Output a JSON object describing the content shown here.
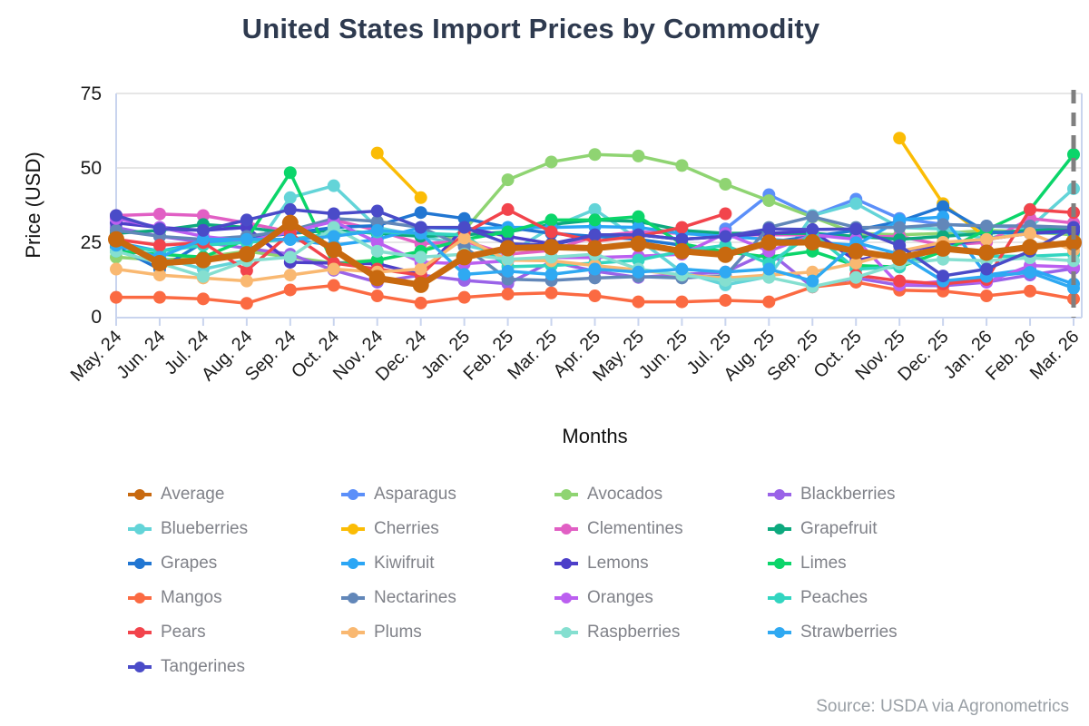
{
  "header": {
    "title": "United States Import Prices by Commodity"
  },
  "footer": {
    "source": "Source: USDA via Agronometrics"
  },
  "chart_data": {
    "type": "line",
    "title": "United States Import Prices by Commodity",
    "xlabel": "Months",
    "ylabel": "Price (USD)",
    "ylim": [
      0,
      75
    ],
    "yticks": [
      0,
      25,
      50,
      75
    ],
    "grid": true,
    "legend_position": "bottom",
    "annotations": [
      {
        "type": "vline",
        "x": "Mar. 26",
        "style": "dashed",
        "color": "#7F7F7F"
      }
    ],
    "categories": [
      "May. 24",
      "Jun. 24",
      "Jul. 24",
      "Aug. 24",
      "Sep. 24",
      "Oct. 24",
      "Nov. 24",
      "Dec. 24",
      "Jan. 25",
      "Feb. 25",
      "Mar. 25",
      "Apr. 25",
      "May. 25",
      "Jun. 25",
      "Jul. 25",
      "Aug. 25",
      "Sep. 25",
      "Oct. 25",
      "Nov. 25",
      "Dec. 25",
      "Jan. 26",
      "Feb. 26",
      "Mar. 26"
    ],
    "series": [
      {
        "name": "Average",
        "color": "#C8690F",
        "emphasized": true,
        "values": [
          26,
          18,
          19,
          21,
          31.5,
          22.5,
          13,
          10.7,
          20,
          23,
          23.4,
          23,
          24.5,
          22,
          20.8,
          24.9,
          25,
          22,
          19.8,
          22.9,
          21.5,
          23.4,
          24.9
        ]
      },
      {
        "name": "Asparagus",
        "color": "#5B8FF9",
        "values": [
          null,
          null,
          null,
          null,
          null,
          null,
          null,
          null,
          null,
          null,
          null,
          null,
          null,
          null,
          29.5,
          41,
          34,
          39.5,
          33,
          31,
          30.5,
          30,
          29.5
        ]
      },
      {
        "name": "Avocados",
        "color": "#8FD472",
        "values": [
          20,
          19,
          20,
          22,
          20,
          18,
          19,
          21.8,
          29,
          46,
          52,
          54.5,
          54,
          50.8,
          44.5,
          39,
          33.5,
          28,
          27.5,
          28,
          29,
          28.5,
          27.5
        ]
      },
      {
        "name": "Blackberries",
        "color": "#9A63E8",
        "values": [
          30,
          27,
          25,
          23,
          21,
          15.6,
          11.6,
          14,
          12.2,
          11.1,
          18.5,
          15.3,
          13.2,
          14.2,
          15,
          21.8,
          10,
          13,
          10.6,
          10.4,
          11.6,
          14,
          16.2
        ]
      },
      {
        "name": "Blueberries",
        "color": "#63D4D8",
        "values": [
          24,
          20,
          16,
          19,
          40,
          44,
          30,
          27,
          24,
          21,
          30,
          36,
          26,
          15,
          10.7,
          13.5,
          34,
          38,
          30,
          29.5,
          26,
          30,
          43
        ]
      },
      {
        "name": "Cherries",
        "color": "#FBBC05",
        "values": [
          null,
          null,
          null,
          null,
          null,
          null,
          55,
          40,
          null,
          null,
          null,
          null,
          null,
          null,
          null,
          null,
          null,
          null,
          60,
          38,
          26.5,
          null,
          null
        ]
      },
      {
        "name": "Clementines",
        "color": "#E15FC4",
        "values": [
          34,
          34.5,
          34,
          31.5,
          28.5,
          32.5,
          29,
          24.5,
          25.4,
          21,
          22.3,
          27,
          28.5,
          28,
          27.5,
          27.5,
          27.5,
          26.8,
          27,
          24,
          25,
          33,
          31.5
        ]
      },
      {
        "name": "Grapefruit",
        "color": "#0DA97E",
        "values": [
          28,
          29,
          31,
          30,
          28,
          29,
          28,
          27,
          27.5,
          28.5,
          31,
          32.5,
          32,
          29,
          28,
          28,
          28,
          27,
          26,
          27,
          28,
          29,
          29.5
        ]
      },
      {
        "name": "Grapes",
        "color": "#2176D2",
        "values": [
          23.5,
          16,
          25,
          26,
          28,
          30,
          30.6,
          35,
          33,
          30,
          28,
          27,
          26,
          24,
          20.3,
          25,
          27,
          29,
          32,
          37,
          28.5,
          28,
          28.5
        ]
      },
      {
        "name": "Kiwifruit",
        "color": "#2BA6F5",
        "values": [
          25,
          22,
          25,
          26,
          26,
          24,
          26,
          30,
          29.5,
          30,
          30,
          30.3,
          30,
          28,
          27,
          26,
          25,
          24,
          32.5,
          33.5,
          14,
          16,
          11
        ]
      },
      {
        "name": "Lemons",
        "color": "#4D3FC9",
        "values": [
          31.5,
          30,
          29,
          30,
          18.3,
          18,
          17.8,
          14.2,
          30,
          27,
          24.5,
          27.5,
          27.5,
          26,
          27,
          28,
          28.8,
          18.8,
          22,
          24,
          26,
          28,
          29
        ]
      },
      {
        "name": "Limes",
        "color": "#0BD56A",
        "values": [
          22,
          21,
          20,
          26,
          48.4,
          17.5,
          19,
          22,
          26,
          28.5,
          32.5,
          32.5,
          33.6,
          24.5,
          21.8,
          20,
          22,
          17.2,
          16.7,
          22,
          29.2,
          36,
          54.5
        ]
      },
      {
        "name": "Mangos",
        "color": "#FB6A42",
        "values": [
          6.5,
          6.5,
          6,
          4.5,
          9,
          10.5,
          7,
          4.6,
          6.5,
          7.6,
          8,
          7,
          5,
          5,
          5.5,
          5,
          10,
          11.6,
          8.9,
          8.6,
          7,
          8.6,
          6
        ]
      },
      {
        "name": "Nectarines",
        "color": "#6287B9",
        "values": [
          29,
          27,
          26,
          27,
          29,
          33,
          32,
          30,
          23.5,
          12.6,
          12.2,
          13,
          13.5,
          13,
          13.8,
          30,
          33.6,
          30,
          30,
          31,
          30.5,
          30.5,
          30
        ]
      },
      {
        "name": "Oranges",
        "color": "#BB5FF0",
        "values": [
          33,
          30,
          27,
          25.4,
          28.5,
          32,
          25,
          18.3,
          17.8,
          18.8,
          19.9,
          19.9,
          20.3,
          21,
          28,
          22,
          27.5,
          26,
          10.6,
          11.9,
          11.6,
          17.2,
          16.7
        ]
      },
      {
        "name": "Peaches",
        "color": "#32D5C0",
        "values": [
          24,
          22,
          24,
          25,
          26,
          28,
          28.5,
          28,
          27.5,
          16.8,
          17.2,
          18,
          19,
          22,
          24,
          17.8,
          28,
          16,
          16.7,
          24.4,
          20.3,
          20.3,
          21
        ]
      },
      {
        "name": "Pears",
        "color": "#F2444C",
        "values": [
          26,
          24,
          24.9,
          15.5,
          28,
          18,
          16,
          14,
          28,
          36,
          28.5,
          25.4,
          27,
          30,
          34.6,
          null,
          null,
          14,
          12,
          11,
          12.5,
          36,
          35
        ]
      },
      {
        "name": "Plums",
        "color": "#F9B871",
        "values": [
          16,
          14,
          13,
          12,
          14,
          16,
          15,
          16,
          26.4,
          19,
          18.8,
          17.2,
          15.7,
          14,
          13,
          14,
          15,
          18,
          22,
          25,
          26,
          28,
          22.3
        ]
      },
      {
        "name": "Raspberries",
        "color": "#85DFD0",
        "values": [
          22,
          18,
          13.5,
          18.8,
          20,
          30,
          22,
          20,
          21,
          19.3,
          20,
          21,
          16,
          14,
          12.2,
          13.2,
          10.1,
          13.2,
          17.8,
          19.3,
          18.8,
          19.8,
          18.8
        ]
      },
      {
        "name": "Strawberries",
        "color": "#2FA9F2",
        "values": [
          24,
          20,
          26,
          26,
          25.9,
          27,
          29,
          28,
          14.2,
          15.3,
          14.2,
          16,
          15,
          16,
          15,
          16,
          12,
          24.9,
          21,
          12,
          13.5,
          14.9,
          9.6
        ]
      },
      {
        "name": "Tangerines",
        "color": "#4A4BC8",
        "values": [
          34,
          29.5,
          29,
          32.5,
          36,
          34.6,
          35.5,
          30,
          30,
          24.5,
          24,
          27.5,
          27.5,
          26,
          27,
          29.5,
          29.3,
          29.5,
          23.9,
          13.7,
          16,
          22,
          30
        ]
      }
    ],
    "style": {
      "axis_frame_color": "#C9D4EE",
      "gridline_color": "#E6E6E6",
      "tick_label_color": "#1A1A1A",
      "axis_title_color": "#111111",
      "title_color": "#2E3A4F",
      "legend_text_color": "#808289",
      "source_text_color": "#9AA0A6"
    }
  }
}
